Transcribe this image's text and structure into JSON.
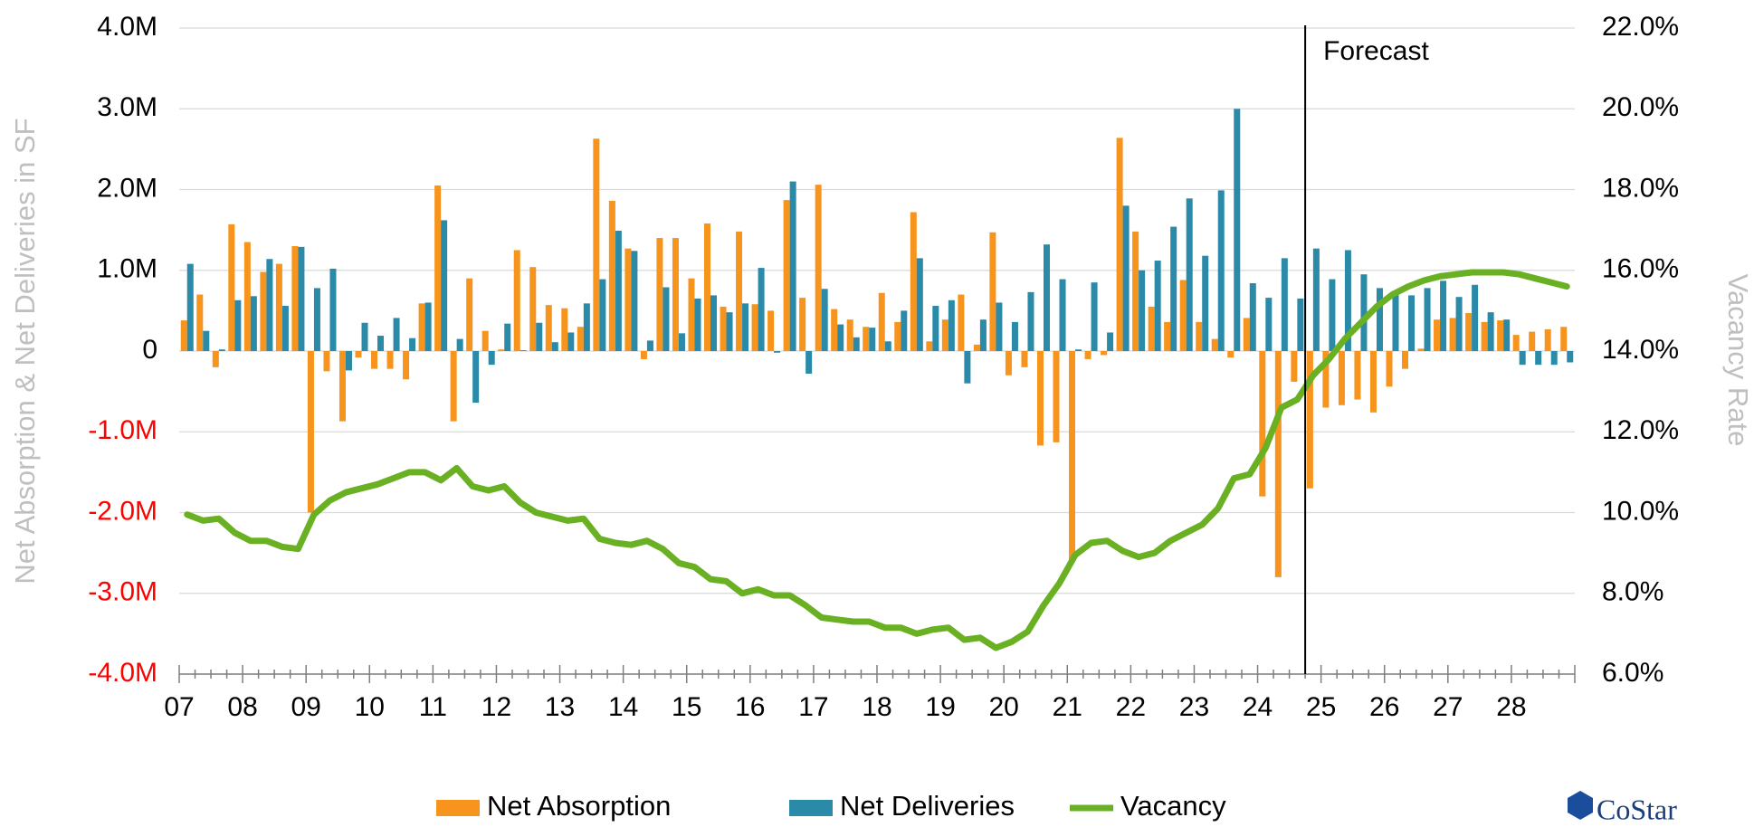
{
  "chart_data": {
    "type": "bar-line",
    "y_axis_label": "Net Absorption & Net Deliveries in SF",
    "y2_axis_label": "Vacancy Rate",
    "annotations": [
      {
        "text": "Forecast"
      }
    ],
    "logo_text": "CoStar",
    "categories": [
      "07",
      null,
      null,
      null,
      "08",
      null,
      null,
      null,
      "09",
      null,
      null,
      null,
      "10",
      null,
      null,
      null,
      "11",
      null,
      null,
      null,
      "12",
      null,
      null,
      null,
      "13",
      null,
      null,
      null,
      "14",
      null,
      null,
      null,
      "15",
      null,
      null,
      null,
      "16",
      null,
      null,
      null,
      "17",
      null,
      null,
      null,
      "18",
      null,
      null,
      null,
      "19",
      null,
      null,
      null,
      "20",
      null,
      null,
      null,
      "21",
      null,
      null,
      null,
      "22",
      null,
      null,
      null,
      "23",
      null,
      null,
      null,
      "24",
      null,
      null,
      null,
      "25",
      null,
      null,
      null,
      "26",
      null,
      null,
      null,
      "27",
      null,
      null,
      null,
      "28",
      null,
      null,
      null
    ],
    "ylim": [
      -4000000,
      4000000
    ],
    "yticks": [
      {
        "value": -4000000,
        "label": "-4.0M"
      },
      {
        "value": -3000000,
        "label": "-3.0M"
      },
      {
        "value": -2000000,
        "label": "-2.0M"
      },
      {
        "value": -1000000,
        "label": "-1.0M"
      },
      0,
      {
        "value": 1000000,
        "label": "1.0M"
      },
      {
        "value": 2000000,
        "label": "2.0M"
      },
      {
        "value": 3000000,
        "label": "3.0M"
      },
      {
        "value": 4000000,
        "label": "4.0M"
      }
    ],
    "y2lim": [
      6,
      22
    ],
    "y2ticks": [
      {
        "value": 6,
        "label": "6.0%"
      },
      {
        "value": 8,
        "label": "8.0%"
      },
      {
        "value": 10,
        "label": "10.0%"
      },
      {
        "value": 12,
        "label": "12.0%"
      },
      {
        "value": 14,
        "label": "14.0%"
      },
      {
        "value": 16,
        "label": "16.0%"
      },
      {
        "value": 18,
        "label": "18.0%"
      },
      {
        "value": 20,
        "label": "20.0%"
      },
      {
        "value": 22,
        "label": "22.0%"
      }
    ],
    "grid": true,
    "negative_tick_color": "#ff0000",
    "series": [
      {
        "name": "Net Absorption",
        "type": "bar",
        "color": "#f7941d",
        "values": [
          380000,
          700000,
          -200000,
          1570000,
          1350000,
          980000,
          1080000,
          1300000,
          -2000000,
          -250000,
          -870000,
          -80000,
          -220000,
          -220000,
          -350000,
          590000,
          2050000,
          -870000,
          900000,
          250000,
          20000,
          1250000,
          1040000,
          570000,
          530000,
          300000,
          2630000,
          1860000,
          1270000,
          -100000,
          1400000,
          1400000,
          900000,
          1580000,
          550000,
          1480000,
          580000,
          500000,
          1870000,
          660000,
          2060000,
          520000,
          390000,
          300000,
          720000,
          360000,
          1720000,
          120000,
          390000,
          700000,
          80000,
          1470000,
          -300000,
          -200000,
          -1170000,
          -1130000,
          -2600000,
          -100000,
          -50000,
          2640000,
          1480000,
          550000,
          360000,
          880000,
          360000,
          150000,
          -80000,
          410000,
          -1800000,
          -2800000,
          -380000,
          -1700000,
          -700000,
          -670000,
          -600000,
          -760000,
          -440000,
          -220000,
          30000,
          390000,
          410000,
          470000,
          360000,
          380000,
          200000,
          240000,
          270000,
          300000
        ]
      },
      {
        "name": "Net Deliveries",
        "type": "bar",
        "color": "#2a8aa8",
        "values": [
          1080000,
          250000,
          20000,
          630000,
          680000,
          1140000,
          560000,
          1290000,
          780000,
          1020000,
          -240000,
          350000,
          190000,
          410000,
          160000,
          600000,
          1620000,
          150000,
          -640000,
          -170000,
          340000,
          10000,
          350000,
          110000,
          230000,
          590000,
          890000,
          1490000,
          1240000,
          130000,
          790000,
          220000,
          650000,
          690000,
          480000,
          590000,
          1030000,
          -20000,
          2100000,
          -280000,
          770000,
          330000,
          170000,
          290000,
          120000,
          500000,
          1150000,
          560000,
          630000,
          -400000,
          390000,
          600000,
          360000,
          730000,
          1320000,
          890000,
          20000,
          850000,
          230000,
          1800000,
          1000000,
          1120000,
          1540000,
          1890000,
          1180000,
          1990000,
          3000000,
          840000,
          660000,
          1150000,
          650000,
          1270000,
          890000,
          1250000,
          950000,
          780000,
          700000,
          690000,
          780000,
          870000,
          670000,
          820000,
          480000,
          390000,
          -170000,
          -170000,
          -170000,
          -140000
        ]
      },
      {
        "name": "Vacancy",
        "type": "line",
        "axis": "y2",
        "color": "#6ab023",
        "values": [
          9.95,
          9.8,
          9.85,
          9.5,
          9.3,
          9.3,
          9.15,
          9.1,
          9.95,
          10.3,
          10.5,
          10.6,
          10.7,
          10.85,
          11.0,
          11.0,
          10.8,
          11.1,
          10.65,
          10.55,
          10.65,
          10.25,
          10.0,
          9.9,
          9.8,
          9.85,
          9.35,
          9.25,
          9.2,
          9.3,
          9.1,
          8.75,
          8.65,
          8.35,
          8.3,
          8.0,
          8.1,
          7.95,
          7.95,
          7.7,
          7.4,
          7.35,
          7.3,
          7.3,
          7.15,
          7.15,
          7.0,
          7.1,
          7.15,
          6.85,
          6.9,
          6.65,
          6.8,
          7.05,
          7.7,
          8.25,
          8.95,
          9.25,
          9.3,
          9.05,
          8.9,
          9.0,
          9.3,
          9.5,
          9.7,
          10.1,
          10.85,
          10.95,
          11.6,
          12.6,
          12.8,
          13.4,
          13.8,
          14.3,
          14.7,
          15.1,
          15.4,
          15.6,
          15.75,
          15.85,
          15.9,
          15.95,
          15.95,
          15.95,
          15.9,
          15.8,
          15.7,
          15.6
        ]
      }
    ]
  }
}
